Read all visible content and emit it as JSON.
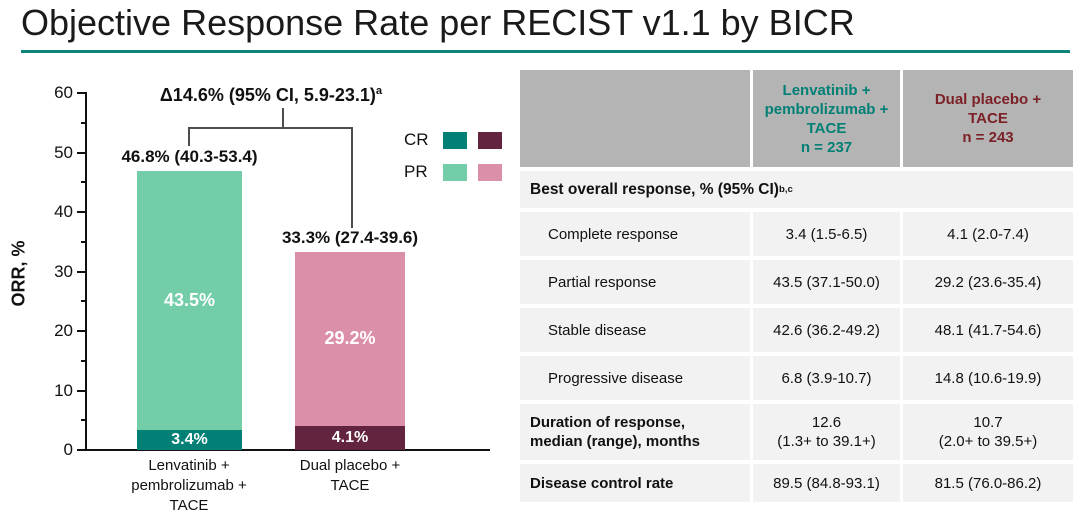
{
  "page_title": "Objective Response Rate per RECIST v1.1 by BICR",
  "accent_colors": {
    "title_underline": "#0e857a",
    "lenvatinib_teal": "#028076",
    "lenvatinib_mint": "#72cda8",
    "placebo_maroon": "#632440",
    "placebo_pink": "#dc8fa8",
    "header_text_teal": "#028076",
    "header_text_red": "#7b2127",
    "table_header_bg": "#b4b4b4",
    "table_row_bg": "#f2f2f2"
  },
  "chart_data": {
    "type": "bar",
    "stacked": true,
    "ylabel": "ORR, %",
    "ylim": [
      0,
      60
    ],
    "yticks": [
      0,
      10,
      20,
      30,
      40,
      50,
      60
    ],
    "grid": false,
    "legend_position": "right",
    "categories": [
      [
        "Lenvatinib +",
        "pembrolizumab +",
        "TACE"
      ],
      [
        "Dual placebo +",
        "TACE"
      ]
    ],
    "series": [
      {
        "name": "CR",
        "values": [
          3.4,
          4.1
        ],
        "colors": [
          "#028076",
          "#632440"
        ]
      },
      {
        "name": "PR",
        "values": [
          43.5,
          29.2
        ],
        "colors": [
          "#72cda8",
          "#dc8fa8"
        ]
      }
    ],
    "totals": [
      "46.8% (40.3-53.4)",
      "33.3% (27.4-39.6)"
    ],
    "segment_labels": [
      [
        "3.4%",
        "43.5%"
      ],
      [
        "4.1%",
        "29.2%"
      ]
    ],
    "annotation": {
      "text": "Δ14.6% (95% CI, 5.9-23.1)",
      "sup": "a"
    },
    "legend": [
      {
        "label": "CR",
        "swatches": [
          "#028076",
          "#632440"
        ]
      },
      {
        "label": "PR",
        "swatches": [
          "#72cda8",
          "#dc8fa8"
        ]
      }
    ]
  },
  "table": {
    "columns": [
      {
        "name": "",
        "n": ""
      },
      {
        "name": [
          "Lenvatinib +",
          "pembrolizumab +",
          "TACE"
        ],
        "n": "n = 237"
      },
      {
        "name": [
          "Dual placebo +",
          "TACE"
        ],
        "n": "n = 243"
      }
    ],
    "section_header": {
      "text": "Best overall response, % (95% CI)",
      "sup": "b,c"
    },
    "rows": [
      {
        "label": "Complete response",
        "values": [
          "3.4 (1.5-6.5)",
          "4.1 (2.0-7.4)"
        ]
      },
      {
        "label": "Partial response",
        "values": [
          "43.5 (37.1-50.0)",
          "29.2 (23.6-35.4)"
        ]
      },
      {
        "label": "Stable disease",
        "values": [
          "42.6 (36.2-49.2)",
          "48.1 (41.7-54.6)"
        ]
      },
      {
        "label": "Progressive disease",
        "values": [
          "6.8 (3.9-10.7)",
          "14.8 (10.6-19.9)"
        ]
      },
      {
        "label": [
          "Duration of response,",
          "median (range), months"
        ],
        "values": [
          [
            "12.6",
            "(1.3+ to 39.1+)"
          ],
          [
            "10.7",
            "(2.0+ to 39.5+)"
          ]
        ],
        "bold": true
      },
      {
        "label": "Disease control rate",
        "values": [
          "89.5 (84.8-93.1)",
          "81.5 (76.0-86.2)"
        ],
        "bold": true
      }
    ]
  }
}
